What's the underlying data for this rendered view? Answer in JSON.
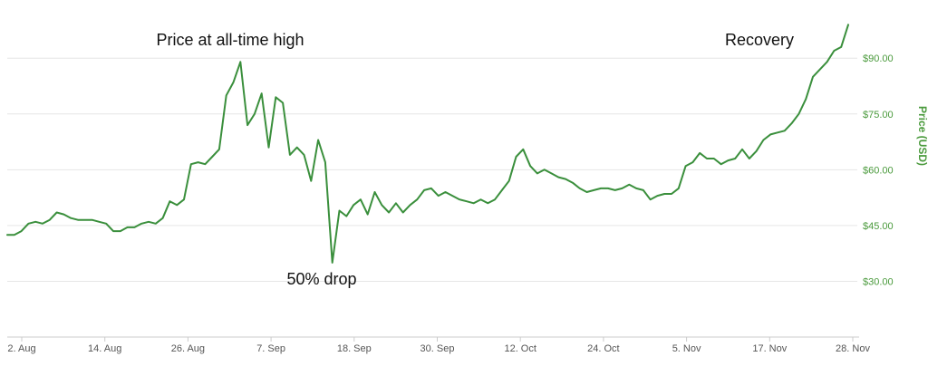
{
  "chart_data": {
    "type": "line",
    "title": "",
    "xlabel": "",
    "ylabel": "Price (USD)",
    "ylim": [
      15,
      102
    ],
    "grid": true,
    "x_ticks": [
      "2. Aug",
      "14. Aug",
      "26. Aug",
      "7. Sep",
      "18. Sep",
      "30. Sep",
      "12. Oct",
      "24. Oct",
      "5. Nov",
      "17. Nov",
      "28. Nov"
    ],
    "y_ticks": [
      "$30.00",
      "$45.00",
      "$60.00",
      "$75.00",
      "$90.00"
    ],
    "y_tick_values": [
      30,
      45,
      60,
      75,
      90
    ],
    "annotations": [
      {
        "text": "Price at all-time high",
        "x": "2017-09-04",
        "y": 89
      },
      {
        "text": "50% drop",
        "x": "2017-09-16",
        "y": 35
      },
      {
        "text": "Recovery",
        "x": "2017-11-23",
        "y": 95
      }
    ],
    "series": [
      {
        "color": "#3a8f3c",
        "x": [
          "2017-08-02",
          "2017-08-03",
          "2017-08-04",
          "2017-08-05",
          "2017-08-06",
          "2017-08-07",
          "2017-08-08",
          "2017-08-09",
          "2017-08-10",
          "2017-08-11",
          "2017-08-12",
          "2017-08-13",
          "2017-08-14",
          "2017-08-15",
          "2017-08-16",
          "2017-08-17",
          "2017-08-18",
          "2017-08-19",
          "2017-08-20",
          "2017-08-21",
          "2017-08-22",
          "2017-08-23",
          "2017-08-24",
          "2017-08-25",
          "2017-08-26",
          "2017-08-27",
          "2017-08-28",
          "2017-08-29",
          "2017-08-30",
          "2017-08-31",
          "2017-09-01",
          "2017-09-02",
          "2017-09-03",
          "2017-09-04",
          "2017-09-05",
          "2017-09-06",
          "2017-09-07",
          "2017-09-08",
          "2017-09-09",
          "2017-09-10",
          "2017-09-11",
          "2017-09-12",
          "2017-09-13",
          "2017-09-14",
          "2017-09-15",
          "2017-09-16",
          "2017-09-17",
          "2017-09-18",
          "2017-09-19",
          "2017-09-20",
          "2017-09-21",
          "2017-09-22",
          "2017-09-23",
          "2017-09-24",
          "2017-09-25",
          "2017-09-26",
          "2017-09-27",
          "2017-09-28",
          "2017-09-29",
          "2017-09-30",
          "2017-10-01",
          "2017-10-02",
          "2017-10-03",
          "2017-10-04",
          "2017-10-05",
          "2017-10-06",
          "2017-10-07",
          "2017-10-08",
          "2017-10-09",
          "2017-10-10",
          "2017-10-11",
          "2017-10-12",
          "2017-10-13",
          "2017-10-14",
          "2017-10-15",
          "2017-10-16",
          "2017-10-17",
          "2017-10-18",
          "2017-10-19",
          "2017-10-20",
          "2017-10-21",
          "2017-10-22",
          "2017-10-23",
          "2017-10-24",
          "2017-10-25",
          "2017-10-26",
          "2017-10-27",
          "2017-10-28",
          "2017-10-29",
          "2017-10-30",
          "2017-10-31",
          "2017-11-01",
          "2017-11-02",
          "2017-11-03",
          "2017-11-04",
          "2017-11-05",
          "2017-11-06",
          "2017-11-07",
          "2017-11-08",
          "2017-11-09",
          "2017-11-10",
          "2017-11-11",
          "2017-11-12",
          "2017-11-13",
          "2017-11-14",
          "2017-11-15",
          "2017-11-16",
          "2017-11-17",
          "2017-11-18",
          "2017-11-19",
          "2017-11-20",
          "2017-11-21",
          "2017-11-22",
          "2017-11-23",
          "2017-11-24",
          "2017-11-25",
          "2017-11-26",
          "2017-11-27",
          "2017-11-28",
          "2017-11-29"
        ],
        "values": [
          42.5,
          42.5,
          43.5,
          45.5,
          46,
          45.5,
          46.5,
          48.5,
          48,
          47,
          46.5,
          46.5,
          46.5,
          46,
          45.5,
          43.5,
          43.5,
          44.5,
          44.5,
          45.5,
          46,
          45.5,
          47,
          51.5,
          50.5,
          52,
          61.5,
          62,
          61.5,
          63.5,
          65.5,
          80,
          83.5,
          89,
          72,
          75,
          80.5,
          66,
          79.5,
          78,
          64,
          66,
          64,
          57,
          68,
          62,
          35,
          49,
          47.5,
          50.5,
          52,
          48,
          54,
          50.5,
          48.5,
          51,
          48.5,
          50.5,
          52,
          54.5,
          55,
          53,
          54,
          53,
          52,
          51.5,
          51,
          52,
          51,
          52,
          54.5,
          57,
          63.5,
          65.5,
          61,
          59,
          60,
          59,
          58,
          57.5,
          56.5,
          55,
          54,
          54.5,
          55,
          55,
          54.5,
          55,
          56,
          55,
          54.5,
          52,
          53,
          53.5,
          53.5,
          55,
          61,
          62,
          64.5,
          63,
          63,
          61.5,
          62.5,
          63,
          65.5,
          63,
          65,
          68,
          69.5,
          70,
          70.5,
          72.5,
          75,
          79,
          85,
          87,
          89,
          92,
          93,
          99
        ]
      }
    ]
  }
}
